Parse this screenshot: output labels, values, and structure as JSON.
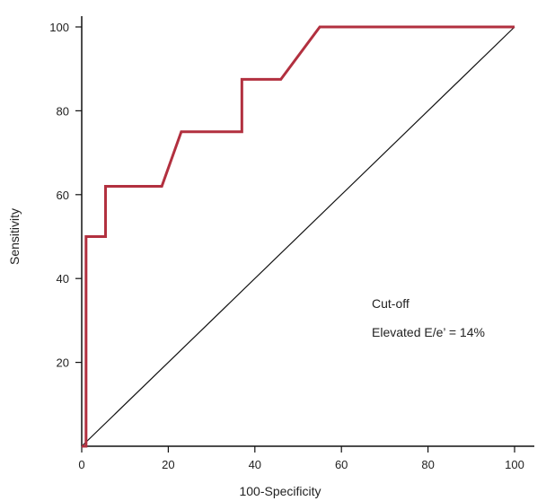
{
  "chart_data": {
    "type": "line",
    "title": "",
    "xlabel": "100-Specificity",
    "ylabel": "Sensitivity",
    "xlim": [
      0,
      100
    ],
    "ylim": [
      0,
      100
    ],
    "x_ticks": [
      0,
      20,
      40,
      60,
      80,
      100
    ],
    "y_ticks": [
      20,
      40,
      60,
      80,
      100
    ],
    "grid": false,
    "series": [
      {
        "name": "ROC curve",
        "color": "#b2303f",
        "x": [
          0,
          1,
          1,
          5.5,
          5.5,
          18.5,
          23,
          37,
          37,
          46,
          55,
          100
        ],
        "y": [
          0,
          0,
          50,
          50,
          62,
          62,
          75,
          75,
          87.5,
          87.5,
          100,
          100
        ]
      },
      {
        "name": "Reference line",
        "color": "#111111",
        "x": [
          0,
          100
        ],
        "y": [
          0,
          100
        ]
      }
    ],
    "annotations": [
      "Cut-off",
      "Elevated E/e’ = 14%"
    ]
  }
}
